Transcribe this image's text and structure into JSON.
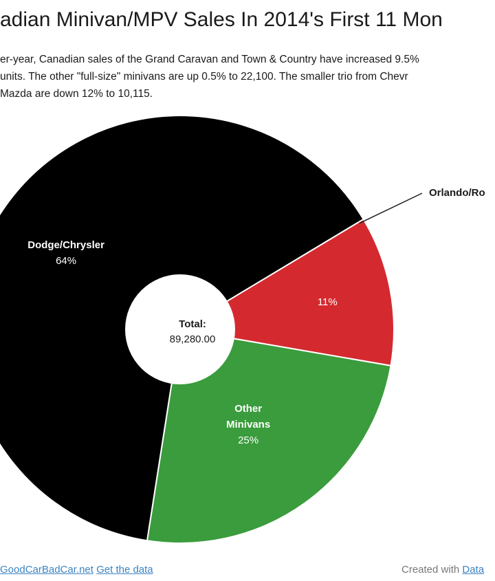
{
  "header": {
    "title": "adian Minivan/MPV Sales In 2014's First 11 Mon",
    "description_lines": [
      "er-year, Canadian sales of the Grand Caravan and Town & Country have increased 9.5%",
      "units. The other \"full-size\" minivans are up 0.5% to 22,100. The smaller trio from Chevr",
      " Mazda are down 12% to 10,115."
    ]
  },
  "chart_data": {
    "type": "pie",
    "variant": "donut",
    "slices": [
      {
        "name": "Orlando/Ro",
        "label_lines": [],
        "percent_label": "11%",
        "percent": 11.33,
        "color": "#d42a2f"
      },
      {
        "name": "Other Minivans",
        "label_lines": [
          "Other",
          "Minivans"
        ],
        "percent_label": "25%",
        "percent": 24.75,
        "color": "#3a9c3c"
      },
      {
        "name": "Dodge/Chrysler",
        "label_lines": [
          "Dodge/Chrysler"
        ],
        "percent_label": "64%",
        "percent": 63.92,
        "color": "#000000"
      }
    ],
    "center": {
      "label": "Total:",
      "value": "89,280.00"
    },
    "callout_label": "Orlando/Ro"
  },
  "footer": {
    "source_link": "GoodCarBadCar.net",
    "data_link": "Get the data",
    "created_with": "Created with",
    "tool_link": "Data"
  }
}
